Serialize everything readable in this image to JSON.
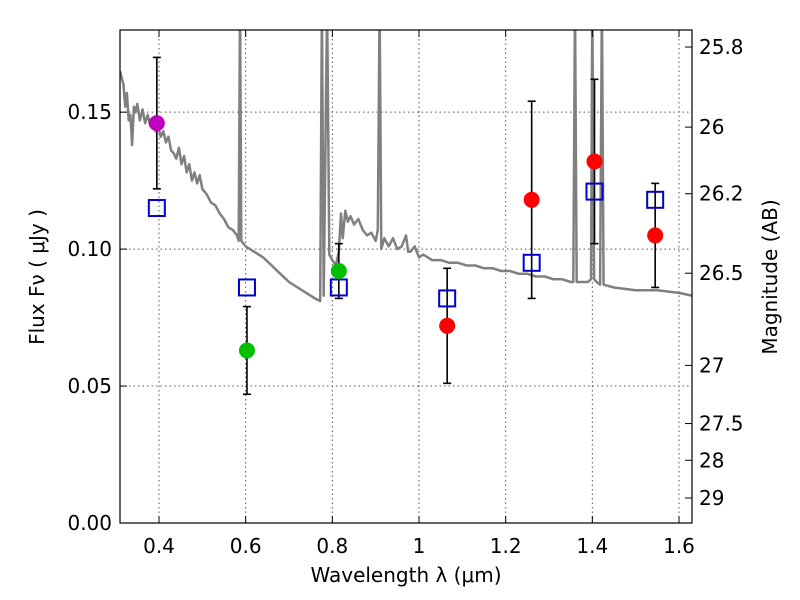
{
  "chart_data": {
    "type": "scatter",
    "xlabel": "Wavelength  λ (μm)",
    "ylabel": "Flux  Fν  ( μJy )",
    "y2label": "Magnitude (AB)",
    "xlim": [
      0.31,
      1.63
    ],
    "ylim": [
      0.0,
      0.18
    ],
    "grid": true,
    "x_ticks": [
      {
        "value": 0.4,
        "label": "0.4"
      },
      {
        "value": 0.6,
        "label": "0.6"
      },
      {
        "value": 0.8,
        "label": "0.8"
      },
      {
        "value": 1.0,
        "label": "1"
      },
      {
        "value": 1.2,
        "label": "1.2"
      },
      {
        "value": 1.4,
        "label": "1.4"
      },
      {
        "value": 1.6,
        "label": "1.6"
      }
    ],
    "y_ticks": [
      {
        "value": 0.0,
        "label": "0.00"
      },
      {
        "value": 0.05,
        "label": "0.05"
      },
      {
        "value": 0.1,
        "label": "0.10"
      },
      {
        "value": 0.15,
        "label": "0.15"
      }
    ],
    "mag_ticks": [
      {
        "value": 25.8,
        "label": "25.8"
      },
      {
        "value": 26,
        "label": "26"
      },
      {
        "value": 26.2,
        "label": "26.2"
      },
      {
        "value": 26.5,
        "label": "26.5"
      },
      {
        "value": 27,
        "label": "27"
      },
      {
        "value": 27.5,
        "label": "27.5"
      },
      {
        "value": 28,
        "label": "28"
      },
      {
        "value": 29,
        "label": "29"
      }
    ],
    "observed": [
      {
        "x": 0.395,
        "y": 0.146,
        "yerr_low": 0.122,
        "yerr_high": 0.17,
        "color": "#bf00bf"
      },
      {
        "x": 0.603,
        "y": 0.063,
        "yerr_low": 0.047,
        "yerr_high": 0.079,
        "color": "#00bf00"
      },
      {
        "x": 0.815,
        "y": 0.092,
        "yerr_low": 0.082,
        "yerr_high": 0.102,
        "color": "#00bf00"
      },
      {
        "x": 1.065,
        "y": 0.072,
        "yerr_low": 0.051,
        "yerr_high": 0.093,
        "color": "#ff0000"
      },
      {
        "x": 1.26,
        "y": 0.118,
        "yerr_low": 0.082,
        "yerr_high": 0.154,
        "color": "#ff0000"
      },
      {
        "x": 1.405,
        "y": 0.132,
        "yerr_low": 0.102,
        "yerr_high": 0.162,
        "color": "#ff0000"
      },
      {
        "x": 1.545,
        "y": 0.105,
        "yerr_low": 0.086,
        "yerr_high": 0.124,
        "color": "#ff0000"
      }
    ],
    "model_points": [
      {
        "x": 0.395,
        "y": 0.115
      },
      {
        "x": 0.603,
        "y": 0.086
      },
      {
        "x": 0.815,
        "y": 0.086
      },
      {
        "x": 1.065,
        "y": 0.082
      },
      {
        "x": 1.26,
        "y": 0.095
      },
      {
        "x": 1.405,
        "y": 0.121
      },
      {
        "x": 1.545,
        "y": 0.118
      }
    ],
    "model_spectrum": [
      [
        0.31,
        0.165
      ],
      [
        0.318,
        0.16
      ],
      [
        0.322,
        0.152
      ],
      [
        0.326,
        0.157
      ],
      [
        0.33,
        0.147
      ],
      [
        0.334,
        0.149
      ],
      [
        0.338,
        0.138
      ],
      [
        0.342,
        0.152
      ],
      [
        0.346,
        0.15
      ],
      [
        0.35,
        0.153
      ],
      [
        0.356,
        0.147
      ],
      [
        0.362,
        0.151
      ],
      [
        0.368,
        0.146
      ],
      [
        0.374,
        0.149
      ],
      [
        0.38,
        0.145
      ],
      [
        0.386,
        0.147
      ],
      [
        0.392,
        0.143
      ],
      [
        0.398,
        0.145
      ],
      [
        0.404,
        0.141
      ],
      [
        0.41,
        0.143
      ],
      [
        0.416,
        0.139
      ],
      [
        0.422,
        0.141
      ],
      [
        0.428,
        0.136
      ],
      [
        0.434,
        0.135
      ],
      [
        0.44,
        0.133
      ],
      [
        0.446,
        0.137
      ],
      [
        0.452,
        0.131
      ],
      [
        0.458,
        0.134
      ],
      [
        0.464,
        0.128
      ],
      [
        0.47,
        0.131
      ],
      [
        0.476,
        0.125
      ],
      [
        0.482,
        0.128
      ],
      [
        0.488,
        0.124
      ],
      [
        0.494,
        0.127
      ],
      [
        0.5,
        0.122
      ],
      [
        0.51,
        0.12
      ],
      [
        0.52,
        0.117
      ],
      [
        0.53,
        0.116
      ],
      [
        0.54,
        0.113
      ],
      [
        0.55,
        0.111
      ],
      [
        0.56,
        0.108
      ],
      [
        0.57,
        0.107
      ],
      [
        0.58,
        0.105
      ],
      [
        0.584,
        0.103
      ],
      [
        0.587,
        0.19
      ],
      [
        0.59,
        0.103
      ],
      [
        0.6,
        0.101
      ],
      [
        0.62,
        0.099
      ],
      [
        0.64,
        0.097
      ],
      [
        0.66,
        0.094
      ],
      [
        0.68,
        0.091
      ],
      [
        0.7,
        0.088
      ],
      [
        0.72,
        0.086
      ],
      [
        0.74,
        0.084
      ],
      [
        0.76,
        0.082
      ],
      [
        0.772,
        0.081
      ],
      [
        0.776,
        0.19
      ],
      [
        0.78,
        0.083
      ],
      [
        0.788,
        0.19
      ],
      [
        0.793,
        0.098
      ],
      [
        0.8,
        0.096
      ],
      [
        0.808,
        0.094
      ],
      [
        0.815,
        0.099
      ],
      [
        0.82,
        0.113
      ],
      [
        0.824,
        0.104
      ],
      [
        0.83,
        0.114
      ],
      [
        0.836,
        0.11
      ],
      [
        0.842,
        0.112
      ],
      [
        0.85,
        0.109
      ],
      [
        0.86,
        0.111
      ],
      [
        0.87,
        0.107
      ],
      [
        0.88,
        0.105
      ],
      [
        0.89,
        0.106
      ],
      [
        0.9,
        0.103
      ],
      [
        0.905,
        0.107
      ],
      [
        0.909,
        0.19
      ],
      [
        0.913,
        0.1
      ],
      [
        0.92,
        0.104
      ],
      [
        0.93,
        0.101
      ],
      [
        0.94,
        0.104
      ],
      [
        0.95,
        0.1
      ],
      [
        0.96,
        0.101
      ],
      [
        0.97,
        0.105
      ],
      [
        0.975,
        0.099
      ],
      [
        0.98,
        0.099
      ],
      [
        0.99,
        0.101
      ],
      [
        1.0,
        0.097
      ],
      [
        1.01,
        0.098
      ],
      [
        1.02,
        0.097
      ],
      [
        1.03,
        0.096
      ],
      [
        1.05,
        0.096
      ],
      [
        1.07,
        0.095
      ],
      [
        1.09,
        0.095
      ],
      [
        1.11,
        0.094
      ],
      [
        1.13,
        0.094
      ],
      [
        1.15,
        0.093
      ],
      [
        1.17,
        0.093
      ],
      [
        1.19,
        0.092
      ],
      [
        1.21,
        0.092
      ],
      [
        1.23,
        0.091
      ],
      [
        1.25,
        0.091
      ],
      [
        1.27,
        0.09
      ],
      [
        1.29,
        0.09
      ],
      [
        1.31,
        0.089
      ],
      [
        1.33,
        0.089
      ],
      [
        1.35,
        0.088
      ],
      [
        1.356,
        0.088
      ],
      [
        1.36,
        0.19
      ],
      [
        1.364,
        0.088
      ],
      [
        1.39,
        0.088
      ],
      [
        1.397,
        0.089
      ],
      [
        1.4,
        0.19
      ],
      [
        1.404,
        0.089
      ],
      [
        1.41,
        0.088
      ],
      [
        1.418,
        0.087
      ],
      [
        1.422,
        0.19
      ],
      [
        1.426,
        0.087
      ],
      [
        1.45,
        0.086
      ],
      [
        1.5,
        0.085
      ],
      [
        1.55,
        0.085
      ],
      [
        1.6,
        0.084
      ],
      [
        1.63,
        0.083
      ]
    ]
  }
}
